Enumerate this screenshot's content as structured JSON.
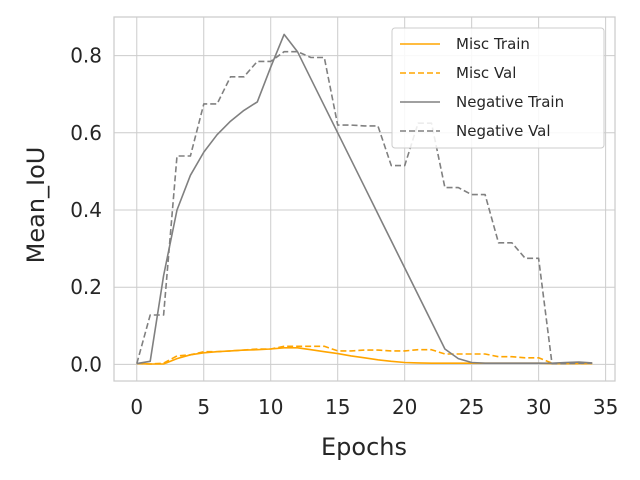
{
  "chart_data": {
    "type": "line",
    "xlabel": "Epochs",
    "ylabel": "Mean_IoU",
    "xlim": [
      -1.7,
      35.7
    ],
    "ylim": [
      -0.043,
      0.9
    ],
    "xticks": [
      0,
      5,
      10,
      15,
      20,
      25,
      30,
      35
    ],
    "yticks": [
      0.0,
      0.2,
      0.4,
      0.6,
      0.8
    ],
    "xtick_labels": [
      "0",
      "5",
      "10",
      "15",
      "20",
      "25",
      "30",
      "35"
    ],
    "ytick_labels": [
      "0.0",
      "0.2",
      "0.4",
      "0.6",
      "0.8"
    ],
    "grid": true,
    "legend_position": "top-right",
    "series": [
      {
        "name": "Misc Train",
        "color": "#ffa500",
        "dash": "solid",
        "x": [
          0,
          1,
          2,
          3,
          4,
          5,
          6,
          7,
          8,
          9,
          10,
          11,
          12,
          13,
          14,
          15,
          16,
          17,
          18,
          19,
          20,
          21,
          22,
          23,
          24,
          25,
          26,
          27,
          28,
          29,
          30,
          31,
          32,
          33,
          34
        ],
        "y": [
          0.002,
          0.001,
          0.001,
          0.015,
          0.025,
          0.03,
          0.033,
          0.035,
          0.037,
          0.038,
          0.04,
          0.043,
          0.043,
          0.038,
          0.033,
          0.028,
          0.022,
          0.017,
          0.012,
          0.008,
          0.005,
          0.004,
          0.003,
          0.003,
          0.003,
          0.003,
          0.003,
          0.003,
          0.003,
          0.003,
          0.003,
          0.002,
          0.002,
          0.002,
          0.002
        ]
      },
      {
        "name": "Misc Val",
        "color": "#ffa500",
        "dash": "dashed",
        "x": [
          0,
          1,
          2,
          3,
          4,
          5,
          6,
          7,
          8,
          9,
          10,
          11,
          12,
          13,
          14,
          15,
          16,
          17,
          18,
          19,
          20,
          21,
          22,
          23,
          24,
          25,
          26,
          27,
          28,
          29,
          30,
          31,
          32,
          33,
          34
        ],
        "y": [
          0.002,
          0.001,
          0.003,
          0.022,
          0.025,
          0.033,
          0.033,
          0.035,
          0.037,
          0.04,
          0.04,
          0.047,
          0.047,
          0.047,
          0.047,
          0.035,
          0.035,
          0.037,
          0.037,
          0.035,
          0.035,
          0.038,
          0.038,
          0.027,
          0.027,
          0.027,
          0.027,
          0.02,
          0.02,
          0.017,
          0.017,
          0.003,
          0.002,
          0.002,
          0.002
        ]
      },
      {
        "name": "Negative Train",
        "color": "#808080",
        "dash": "solid",
        "x": [
          0,
          1,
          2,
          3,
          4,
          5,
          6,
          7,
          8,
          9,
          10,
          11,
          12,
          13,
          14,
          15,
          16,
          17,
          18,
          19,
          20,
          21,
          22,
          23,
          24,
          25,
          26,
          27,
          28,
          29,
          30,
          31,
          32,
          33,
          34
        ],
        "y": [
          0.002,
          0.008,
          0.23,
          0.4,
          0.49,
          0.55,
          0.595,
          0.63,
          0.658,
          0.68,
          0.77,
          0.855,
          0.81,
          0.74,
          0.67,
          0.6,
          0.53,
          0.46,
          0.39,
          0.32,
          0.25,
          0.18,
          0.11,
          0.04,
          0.015,
          0.005,
          0.003,
          0.003,
          0.003,
          0.003,
          0.003,
          0.003,
          0.005,
          0.006,
          0.004
        ]
      },
      {
        "name": "Negative Val",
        "color": "#808080",
        "dash": "dashed",
        "x": [
          0,
          1,
          2,
          3,
          4,
          5,
          6,
          7,
          8,
          9,
          10,
          11,
          12,
          13,
          14,
          15,
          16,
          17,
          18,
          19,
          20,
          21,
          22,
          23,
          24,
          25,
          26,
          27,
          28,
          29,
          30,
          31,
          32,
          33,
          34
        ],
        "y": [
          0.002,
          0.128,
          0.128,
          0.54,
          0.54,
          0.675,
          0.675,
          0.745,
          0.745,
          0.785,
          0.785,
          0.81,
          0.81,
          0.795,
          0.795,
          0.62,
          0.62,
          0.618,
          0.618,
          0.515,
          0.515,
          0.625,
          0.625,
          0.458,
          0.458,
          0.44,
          0.44,
          0.315,
          0.315,
          0.275,
          0.275,
          0.002,
          0.002,
          0.003,
          0.003
        ]
      }
    ]
  }
}
